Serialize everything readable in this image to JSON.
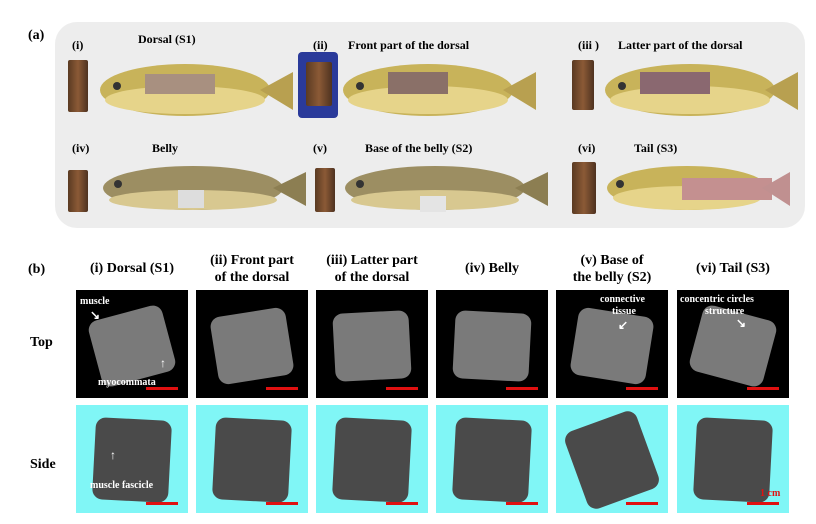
{
  "panel_a": {
    "label": "(a)",
    "items": [
      {
        "num": "(i)",
        "title": "Dorsal (S1)"
      },
      {
        "num": "(ii)",
        "title": "Front part of the dorsal"
      },
      {
        "num": "(iii )",
        "title": "Latter part of the dorsal"
      },
      {
        "num": "(iv)",
        "title": "Belly"
      },
      {
        "num": "(v)",
        "title": "Base of the belly (S2)"
      },
      {
        "num": "(vi)",
        "title": "Tail (S3)"
      }
    ]
  },
  "panel_b": {
    "label": "(b)",
    "columns": [
      {
        "line1": "(i) Dorsal (S1)",
        "line2": ""
      },
      {
        "line1": "(ii) Front part",
        "line2": "of the dorsal"
      },
      {
        "line1": "(iii) Latter part",
        "line2": "of the dorsal"
      },
      {
        "line1": "(iv) Belly",
        "line2": ""
      },
      {
        "line1": "(v) Base of",
        "line2": "the belly (S2)"
      },
      {
        "line1": "(vi) Tail (S3)",
        "line2": ""
      }
    ],
    "rows": {
      "top": "Top",
      "side": "Side"
    },
    "annotations": {
      "muscle": "muscle",
      "myocommata": "myocommata",
      "connective1": "connective",
      "connective2": "tissue",
      "concentric1": "concentric circles",
      "concentric2": "structure",
      "fascicle": "muscle fascicle",
      "scale": "1 cm"
    },
    "colors": {
      "top_bg": "#000000",
      "side_bg": "#80f6f6",
      "scale_bar": "#e01010"
    }
  }
}
